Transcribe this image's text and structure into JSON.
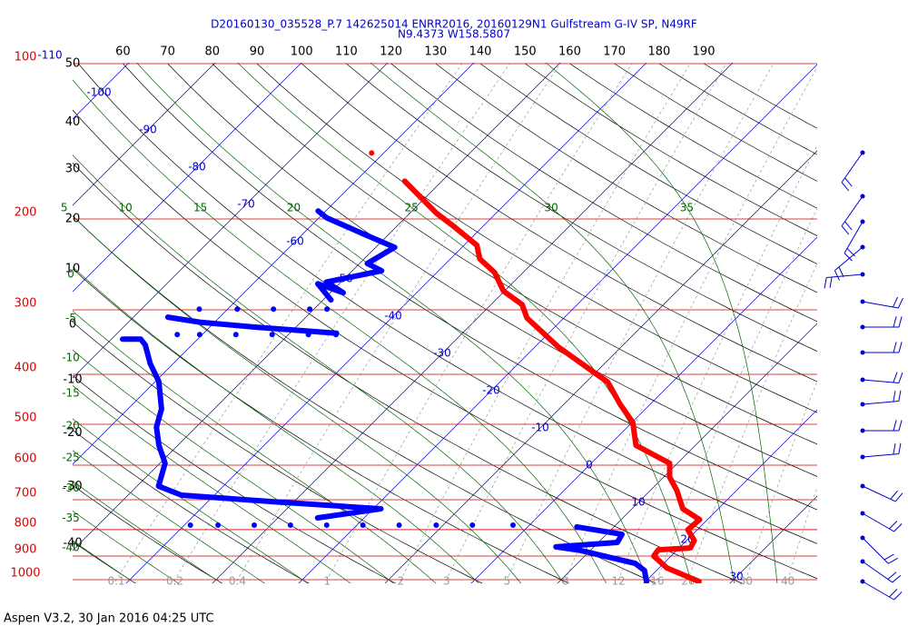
{
  "footer": "Aspen V3.2, 30 Jan 2016  04:25 UTC",
  "chart_data": {
    "type": "skewt",
    "title": "D20160130_035528_P.7 142625014 ENRR2016, 20160129N1 Gulfstream G-IV SP, N49RF",
    "subtitle": "N9.4373 W158.5807",
    "ylim": [
      1000,
      100
    ],
    "log_y": true,
    "yticks": [
      100,
      200,
      300,
      400,
      500,
      600,
      700,
      800,
      900,
      1000
    ],
    "isotherms": [
      -110,
      -100,
      -90,
      -80,
      -70,
      -60,
      -50,
      -40,
      -30,
      -20,
      -10,
      0,
      10,
      20,
      30
    ],
    "dry_adiabats": [
      -40,
      -30,
      -20,
      -10,
      0,
      10,
      20,
      30,
      40,
      50,
      60,
      70,
      80,
      90,
      100,
      110,
      120,
      130,
      140,
      150,
      160,
      170,
      180,
      190
    ],
    "moist_adiabats": [
      -40,
      -35,
      -30,
      -25,
      -20,
      -15,
      -10,
      -5,
      0,
      5,
      10,
      15,
      20,
      25,
      30,
      35
    ],
    "mixing_ratios": [
      0.1,
      0.2,
      0.4,
      1,
      2,
      3,
      5,
      8,
      12,
      16,
      20,
      30,
      40
    ],
    "series": [
      {
        "color": "#ff0000",
        "pressure": [
          1008,
          949,
          900,
          875,
          868,
          840,
          800,
          765,
          729,
          672,
          633,
          595,
          549,
          496,
          457,
          414,
          381,
          354,
          311,
          293,
          276,
          254,
          239,
          225,
          207,
          195,
          169,
          null,
          149
        ],
        "values": [
          26.2,
          20.9,
          18.0,
          17.8,
          21.3,
          20.9,
          18.9,
          19.1,
          15.9,
          13.1,
          10.7,
          9.1,
          3.1,
          0.1,
          -3.5,
          -7.5,
          -12.7,
          -17.3,
          -24.3,
          -26.4,
          -30.1,
          -33.3,
          -36.6,
          -38.5,
          -43.3,
          -46.9,
          -54.3,
          null,
          -61.4
        ]
      },
      {
        "color": "#0000ff",
        "pressure": [
          1008,
          960,
          930,
          878,
          864,
          847,
          817,
          790,
          null,
          784,
          null,
          784,
          null,
          784,
          null,
          784,
          null,
          784,
          null,
          784,
          null,
          784,
          null,
          784,
          null,
          784,
          null,
          784,
          null,
          759,
          729,
          706,
          686,
          659,
          595,
          549,
          506,
          467,
          413,
          381,
          351,
          342,
          342,
          null,
          335,
          null,
          335,
          null,
          335,
          null,
          335,
          null,
          335,
          null,
          335,
          null,
          310,
          317,
          324,
          333,
          null,
          299,
          null,
          299,
          null,
          299,
          null,
          299,
          null,
          299,
          null,
          287,
          267,
          278,
          265,
          252,
          244,
          227,
          214,
          199,
          193
        ],
        "values": [
          20.1,
          18.6,
          16.7,
          8.9,
          5.6,
          12.2,
          11.8,
          5.7,
          null,
          -1.9,
          null,
          -6.6,
          null,
          -10.8,
          null,
          -15.1,
          null,
          -19.3,
          null,
          -23.5,
          null,
          -27.7,
          null,
          -31.9,
          null,
          -36.1,
          null,
          -39.3,
          null,
          -25.4,
          -19.1,
          -32.5,
          -43.8,
          -47.5,
          -49.4,
          -52.2,
          -54.6,
          -56.1,
          -59.6,
          -62.7,
          -65.4,
          -66.6,
          -68.7,
          null,
          -44.5,
          null,
          -47.7,
          null,
          -51.9,
          null,
          -56.1,
          null,
          -60.3,
          null,
          -62.9,
          null,
          -66.0,
          -61.7,
          -54.8,
          -44.6,
          null,
          -63.3,
          null,
          -58.9,
          null,
          -54.7,
          null,
          -50.5,
          null,
          -48.5,
          null,
          -49.1,
          -52.5,
          -48.5,
          -51.7,
          -46.6,
          -49.1,
          -47.8,
          -52.9,
          -59.1,
          -60.9
        ]
      }
    ]
  }
}
